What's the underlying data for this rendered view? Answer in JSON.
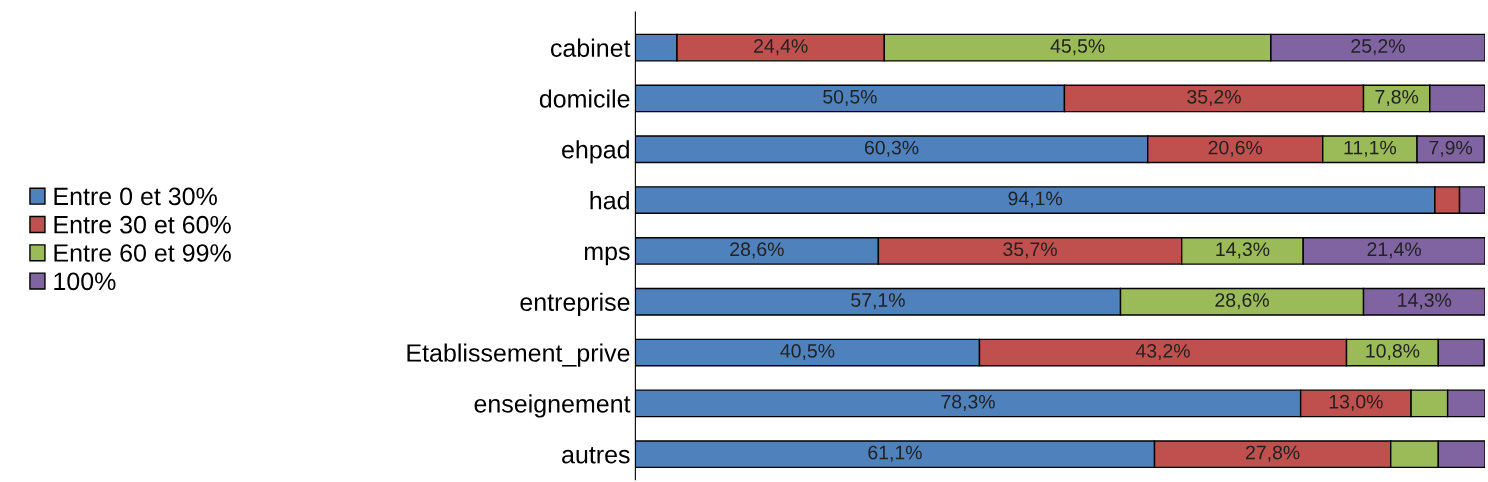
{
  "chart_data": {
    "type": "bar",
    "orientation": "horizontal",
    "stacked": true,
    "categories": [
      "cabinet",
      "domicile",
      "ehpad",
      "had",
      "mps",
      "entreprise",
      "Etablissement_prive",
      "enseignement",
      "autres"
    ],
    "xlim": [
      0,
      100
    ],
    "tick_labels": "y",
    "legend": "left",
    "grid": false,
    "series": [
      {
        "name": "Entre 0 et 30%",
        "color": "#4f81bd",
        "values": [
          4.9,
          50.5,
          60.3,
          94.1,
          28.6,
          57.1,
          40.5,
          78.3,
          61.1
        ],
        "value_labels": [
          null,
          "50,5%",
          "60,3%",
          "94,1%",
          "28,6%",
          "57,1%",
          "40,5%",
          "78,3%",
          "61,1%"
        ]
      },
      {
        "name": "Entre 30 et 60%",
        "color": "#c0504d",
        "values": [
          24.4,
          35.2,
          20.6,
          2.9,
          35.7,
          null,
          43.2,
          13.0,
          27.8
        ],
        "value_labels": [
          "24,4%",
          "35,2%",
          "20,6%",
          null,
          "35,7%",
          null,
          "43,2%",
          "13,0%",
          "27,8%"
        ]
      },
      {
        "name": "Entre 60 et 99%",
        "color": "#9bbb59",
        "values": [
          45.5,
          7.8,
          11.1,
          null,
          14.3,
          28.6,
          10.8,
          4.3,
          5.6
        ],
        "value_labels": [
          "45,5%",
          "7,8%",
          "11,1%",
          null,
          "14,3%",
          "28,6%",
          "10,8%",
          null,
          null
        ]
      },
      {
        "name": "100%",
        "color": "#8064a2",
        "values": [
          25.2,
          6.5,
          7.9,
          3.0,
          21.4,
          14.3,
          5.4,
          4.4,
          5.5
        ],
        "value_labels": [
          "25,2%",
          null,
          "7,9%",
          null,
          "21,4%",
          "14,3%",
          null,
          null,
          null
        ]
      }
    ]
  }
}
